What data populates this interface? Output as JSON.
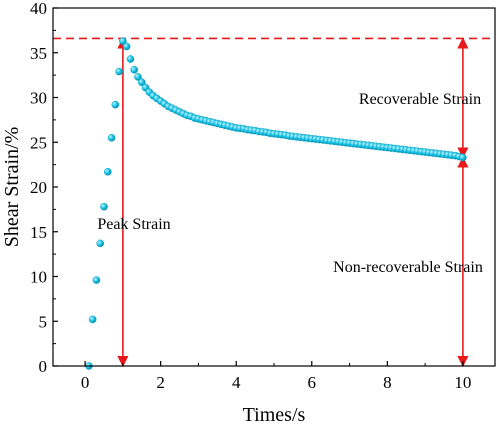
{
  "chart_data": {
    "type": "scatter",
    "title": "",
    "xlabel": "Times/s",
    "ylabel": "Shear Strain/%",
    "xlim": [
      -0.85,
      10.85
    ],
    "ylim": [
      0,
      40
    ],
    "xticks": [
      "0",
      "2",
      "4",
      "6",
      "8",
      "10"
    ],
    "yticks": [
      "0",
      "5",
      "10",
      "15",
      "20",
      "25",
      "30",
      "35",
      "40"
    ],
    "grid": false,
    "legend": "none",
    "marker_color": "#19c5e6",
    "annotation_color": "#e8191b",
    "peak_line_y": 36.6,
    "annotations": {
      "recoverable": "Recoverable Strain",
      "peak": "Peak Strain",
      "nonrecoverable": "Non-recoverable Strain"
    },
    "arrows": {
      "peak": {
        "x": 1.0,
        "y0": 0,
        "y1": 36.6
      },
      "recoverable": {
        "x": 10.0,
        "y0": 23.3,
        "y1": 36.6
      },
      "nonrecoverable": {
        "x": 10.0,
        "y0": 0,
        "y1": 23.3
      }
    },
    "series": [
      {
        "points": [
          [
            0.1,
            0.0
          ],
          [
            0.2,
            5.2
          ],
          [
            0.3,
            9.6
          ],
          [
            0.4,
            13.7
          ],
          [
            0.5,
            17.8
          ],
          [
            0.6,
            21.7
          ],
          [
            0.7,
            25.5
          ],
          [
            0.8,
            29.2
          ],
          [
            0.9,
            32.9
          ],
          [
            1.0,
            36.3
          ],
          [
            1.1,
            35.7
          ],
          [
            1.2,
            34.3
          ],
          [
            1.3,
            33.1
          ],
          [
            1.4,
            32.3
          ],
          [
            1.5,
            31.7
          ],
          [
            1.6,
            31.1
          ],
          [
            1.7,
            30.6
          ],
          [
            1.8,
            30.2
          ],
          [
            1.9,
            29.9
          ],
          [
            2.0,
            29.6
          ],
          [
            2.1,
            29.3
          ],
          [
            2.2,
            29.0
          ],
          [
            2.3,
            28.8
          ],
          [
            2.4,
            28.6
          ],
          [
            2.5,
            28.4
          ],
          [
            2.6,
            28.2
          ],
          [
            2.7,
            28.0
          ],
          [
            2.8,
            27.9
          ],
          [
            2.9,
            27.7
          ],
          [
            3.0,
            27.6
          ],
          [
            3.1,
            27.5
          ],
          [
            3.2,
            27.4
          ],
          [
            3.3,
            27.3
          ],
          [
            3.4,
            27.2
          ],
          [
            3.5,
            27.1
          ],
          [
            3.6,
            27.0
          ],
          [
            3.7,
            26.9
          ],
          [
            3.8,
            26.8
          ],
          [
            3.9,
            26.7
          ],
          [
            4.0,
            26.6
          ],
          [
            4.1,
            26.55
          ],
          [
            4.2,
            26.5
          ],
          [
            4.3,
            26.4
          ],
          [
            4.4,
            26.35
          ],
          [
            4.5,
            26.3
          ],
          [
            4.6,
            26.2
          ],
          [
            4.7,
            26.15
          ],
          [
            4.8,
            26.1
          ],
          [
            4.9,
            26.0
          ],
          [
            5.0,
            25.95
          ],
          [
            5.1,
            25.9
          ],
          [
            5.2,
            25.85
          ],
          [
            5.3,
            25.8
          ],
          [
            5.4,
            25.7
          ],
          [
            5.5,
            25.65
          ],
          [
            5.6,
            25.6
          ],
          [
            5.7,
            25.55
          ],
          [
            5.8,
            25.5
          ],
          [
            5.9,
            25.45
          ],
          [
            6.0,
            25.4
          ],
          [
            6.1,
            25.35
          ],
          [
            6.2,
            25.3
          ],
          [
            6.3,
            25.25
          ],
          [
            6.4,
            25.2
          ],
          [
            6.5,
            25.15
          ],
          [
            6.6,
            25.1
          ],
          [
            6.7,
            25.05
          ],
          [
            6.8,
            25.0
          ],
          [
            6.9,
            24.95
          ],
          [
            7.0,
            24.9
          ],
          [
            7.1,
            24.85
          ],
          [
            7.2,
            24.8
          ],
          [
            7.3,
            24.75
          ],
          [
            7.4,
            24.7
          ],
          [
            7.5,
            24.65
          ],
          [
            7.6,
            24.6
          ],
          [
            7.7,
            24.55
          ],
          [
            7.8,
            24.5
          ],
          [
            7.9,
            24.45
          ],
          [
            8.0,
            24.4
          ],
          [
            8.1,
            24.35
          ],
          [
            8.2,
            24.3
          ],
          [
            8.3,
            24.25
          ],
          [
            8.4,
            24.2
          ],
          [
            8.5,
            24.15
          ],
          [
            8.6,
            24.1
          ],
          [
            8.7,
            24.05
          ],
          [
            8.8,
            24.0
          ],
          [
            8.9,
            23.95
          ],
          [
            9.0,
            23.9
          ],
          [
            9.1,
            23.85
          ],
          [
            9.2,
            23.8
          ],
          [
            9.3,
            23.75
          ],
          [
            9.4,
            23.7
          ],
          [
            9.5,
            23.65
          ],
          [
            9.6,
            23.6
          ],
          [
            9.7,
            23.55
          ],
          [
            9.8,
            23.5
          ],
          [
            9.9,
            23.4
          ],
          [
            10.0,
            23.3
          ]
        ]
      }
    ]
  }
}
